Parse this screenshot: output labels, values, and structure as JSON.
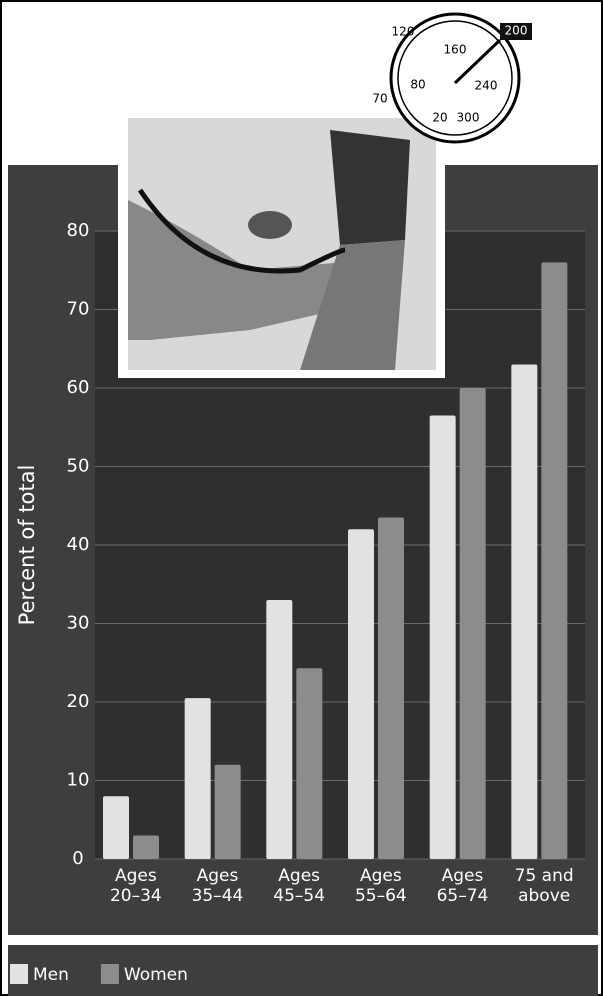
{
  "chart_data": {
    "type": "bar",
    "y_label": "Percent of total",
    "categories": [
      "Ages 20–34",
      "Ages 35–44",
      "Ages 45–54",
      "Ages 55–64",
      "Ages 65–74",
      "75 and above"
    ],
    "series": [
      {
        "name": "Men",
        "color": "#e2e2e2",
        "values": [
          8,
          20.5,
          33,
          42,
          56.5,
          63
        ]
      },
      {
        "name": "Women",
        "color": "#8c8c8c",
        "values": [
          3,
          12,
          24.3,
          43.5,
          60,
          76
        ]
      }
    ],
    "ylim": [
      0,
      80
    ],
    "yticks": [
      0,
      10,
      20,
      30,
      40,
      50,
      60,
      70,
      80
    ],
    "grid": true
  },
  "illustration": {
    "gauge_labels": [
      "120",
      "160",
      "200",
      "80",
      "240",
      "70",
      "20",
      "300"
    ]
  }
}
